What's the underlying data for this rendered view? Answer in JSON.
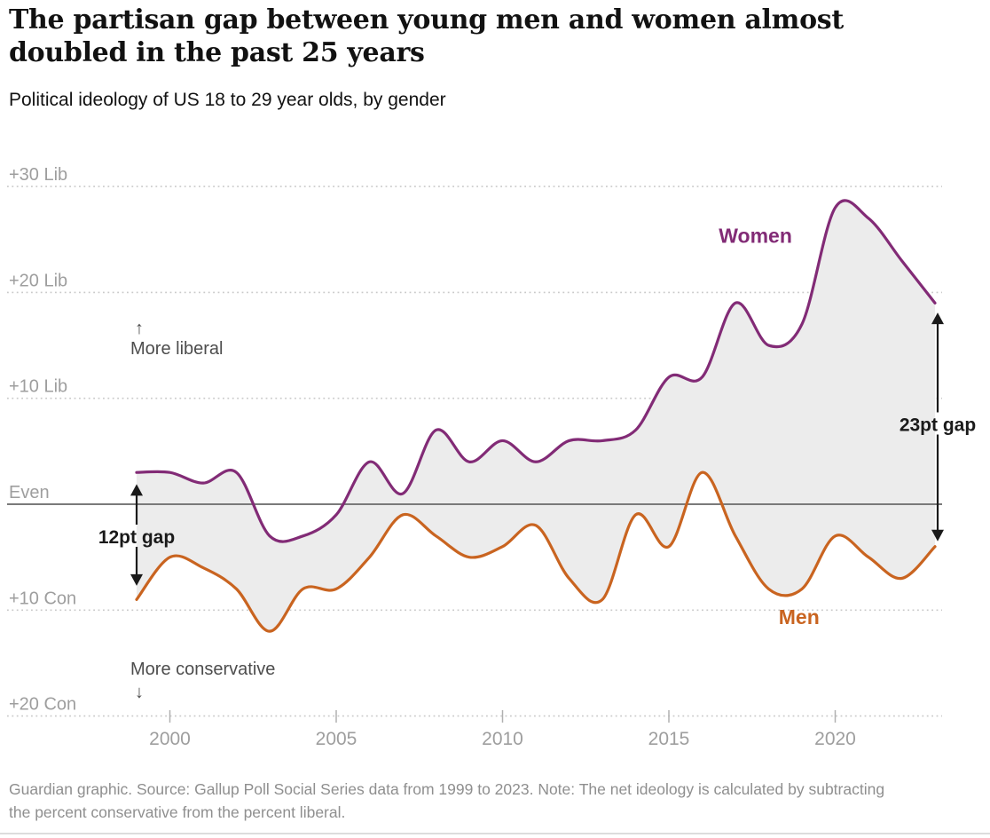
{
  "header": {
    "title_lines": [
      "The partisan gap between young men and women almost",
      "doubled in the past 25 years"
    ],
    "subtitle": "Political ideology of US 18 to 29 year olds, by gender"
  },
  "footer": {
    "text": "Guardian graphic. Source: Gallup Poll Social Series data from 1999 to 2023. Note: The net ideology is calculated by subtracting the percent conservative from the percent liberal."
  },
  "colors": {
    "women": "#822b76",
    "men": "#c96420",
    "band_fill": "#ececec",
    "grid": "#c9c9c9",
    "tick_mark": "#b0b0b0",
    "axis_text": "#9e9e9e",
    "even_line": "#7a7a7a",
    "direction_text": "#4d4d4d",
    "annotation": "#1a1a1a",
    "footer_text": "#8f8f8f",
    "title_text": "#121212"
  },
  "chart_data": {
    "type": "line",
    "title": "The partisan gap between young men and women almost doubled in the past 25 years",
    "subtitle": "Political ideology of US 18 to 29 year olds, by gender",
    "x": [
      1999,
      2000,
      2001,
      2002,
      2003,
      2004,
      2005,
      2006,
      2007,
      2008,
      2009,
      2010,
      2011,
      2012,
      2013,
      2014,
      2015,
      2016,
      2017,
      2018,
      2019,
      2020,
      2021,
      2022,
      2023
    ],
    "series": [
      {
        "name": "Women",
        "color": "#822b76",
        "values": [
          3,
          3,
          2,
          3,
          -3,
          -3,
          -1,
          4,
          1,
          7,
          4,
          6,
          4,
          6,
          6,
          7,
          12,
          12,
          19,
          15,
          17,
          28,
          27,
          23,
          19
        ],
        "label_year": 2016.5,
        "label_value": 24.7
      },
      {
        "name": "Men",
        "color": "#c96420",
        "values": [
          -9,
          -5,
          -6,
          -8,
          -12,
          -8,
          -8,
          -5,
          -1,
          -3,
          -5,
          -4,
          -2,
          -7,
          -9,
          -1,
          -4,
          3,
          -3,
          -8,
          -8,
          -3,
          -5,
          -7,
          -4
        ],
        "label_year": 2018.3,
        "label_value": -11.3
      }
    ],
    "band_between_series": true,
    "grid": true,
    "legend_position": "inline-labels",
    "xlim": [
      1999,
      2023
    ],
    "ylim": [
      -20,
      30
    ],
    "y_ticks": [
      {
        "value": 30,
        "label": "+30 Lib"
      },
      {
        "value": 20,
        "label": "+20 Lib"
      },
      {
        "value": 10,
        "label": "+10 Lib"
      },
      {
        "value": 0,
        "label": "Even"
      },
      {
        "value": -10,
        "label": "+10 Con"
      },
      {
        "value": -20,
        "label": "+20 Con"
      }
    ],
    "x_ticks": [
      2000,
      2005,
      2010,
      2015,
      2020
    ],
    "direction_labels": {
      "up": "More liberal",
      "down": "More conservative",
      "up_arrow": "↑",
      "down_arrow": "↓"
    },
    "annotations": [
      {
        "text": "12pt gap",
        "year": 1999,
        "x_offset": 0,
        "top_value": 1.9,
        "bottom_value": -7.7,
        "text_value": -3.1
      },
      {
        "text": "23pt gap",
        "year": 2023,
        "x_offset": 3,
        "top_value": 18.1,
        "bottom_value": -3.5,
        "text_value": 7.5
      }
    ]
  }
}
